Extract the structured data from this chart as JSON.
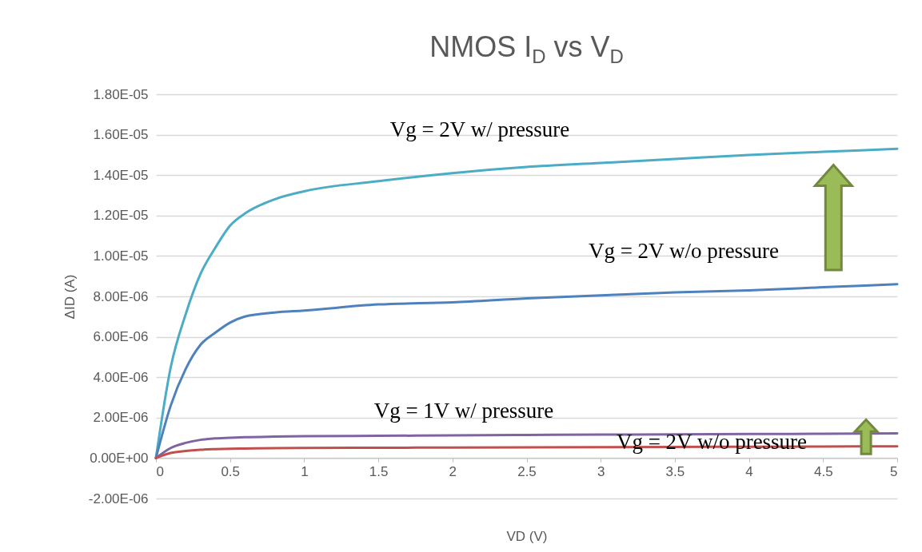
{
  "chart_data": {
    "type": "line",
    "title": "NMOS I$_{D}$ vs V$_{D}$",
    "xlabel": "VD (V)",
    "ylabel": "ΔID (A)",
    "x": [
      0,
      0.1,
      0.2,
      0.3,
      0.4,
      0.5,
      0.6,
      0.8,
      1,
      1.5,
      2,
      2.5,
      3,
      3.5,
      4,
      4.5,
      5
    ],
    "series": [
      {
        "color": "#4bacc6",
        "values": [
          0,
          4.5e-06,
          7.1e-06,
          9.1e-06,
          1.04e-05,
          1.15e-05,
          1.21e-05,
          1.28e-05,
          1.32e-05,
          1.37e-05,
          1.41e-05,
          1.44e-05,
          1.46e-05,
          1.48e-05,
          1.5e-05,
          1.515e-05,
          1.53e-05
        ]
      },
      {
        "color": "#4f81bd",
        "values": [
          0,
          2.6e-06,
          4.4e-06,
          5.6e-06,
          6.2e-06,
          6.7e-06,
          7e-06,
          7.2e-06,
          7.3e-06,
          7.6e-06,
          7.7e-06,
          7.9e-06,
          8.05e-06,
          8.2e-06,
          8.3e-06,
          8.45e-06,
          8.6e-06
        ]
      },
      {
        "color": "#8064a2",
        "values": [
          0,
          5e-07,
          7.5e-07,
          9e-07,
          9.7e-07,
          1e-06,
          1.03e-06,
          1.06e-06,
          1.08e-06,
          1.1e-06,
          1.12e-06,
          1.14e-06,
          1.16e-06,
          1.17e-06,
          1.19e-06,
          1.2e-06,
          1.22e-06
        ]
      },
      {
        "color": "#c0504d",
        "values": [
          0,
          2.5e-07,
          3.5e-07,
          4.1e-07,
          4.4e-07,
          4.6e-07,
          4.7e-07,
          4.9e-07,
          5e-07,
          5.1e-07,
          5.2e-07,
          5.3e-07,
          5.4e-07,
          5.5e-07,
          5.6e-07,
          5.7e-07,
          5.8e-07
        ]
      }
    ],
    "xlim": [
      0,
      5
    ],
    "xticks": [
      0,
      0.5,
      1,
      1.5,
      2,
      2.5,
      3,
      3.5,
      4,
      4.5,
      5
    ],
    "ylim": [
      -2e-06,
      1.8e-05
    ],
    "yticks": [
      {
        "value": -2e-06,
        "label": "-2.00E-06"
      },
      {
        "value": 0,
        "label": "0.00E+00"
      },
      {
        "value": 2e-06,
        "label": "2.00E-06"
      },
      {
        "value": 4e-06,
        "label": "4.00E-06"
      },
      {
        "value": 6e-06,
        "label": "6.00E-06"
      },
      {
        "value": 8e-06,
        "label": "8.00E-06"
      },
      {
        "value": 1e-05,
        "label": "1.00E-05"
      },
      {
        "value": 1.2e-05,
        "label": "1.20E-05"
      },
      {
        "value": 1.4e-05,
        "label": "1.40E-05"
      },
      {
        "value": 1.6e-05,
        "label": "1.60E-05"
      },
      {
        "value": 1.8e-05,
        "label": "1.80E-05"
      }
    ],
    "grid": "y",
    "annotations": [
      "Vg = 2V w/ pressure",
      "Vg = 2V w/o pressure",
      "Vg = 1V w/ pressure",
      "Vg = 2V w/o pressure"
    ]
  }
}
